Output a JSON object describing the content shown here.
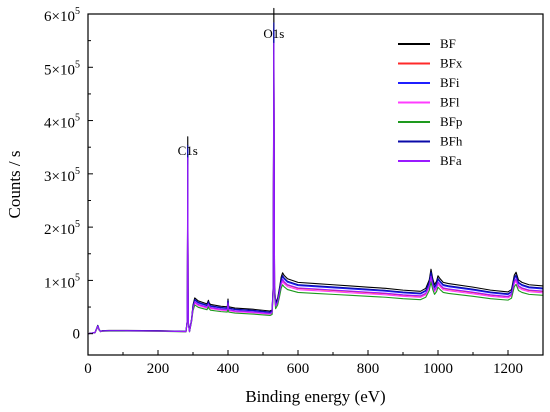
{
  "chart_data": {
    "type": "line",
    "title": "",
    "xlabel": "Binding energy (eV)",
    "ylabel": "Counts / s",
    "xlim": [
      0,
      1300
    ],
    "ylim": [
      -40000,
      600000
    ],
    "xticks": [
      {
        "value": 0,
        "label": "0"
      },
      {
        "value": 200,
        "label": "200"
      },
      {
        "value": 400,
        "label": "400"
      },
      {
        "value": 600,
        "label": "600"
      },
      {
        "value": 800,
        "label": "800"
      },
      {
        "value": 1000,
        "label": "1000"
      },
      {
        "value": 1200,
        "label": "1200"
      }
    ],
    "yticks": [
      {
        "value": 0,
        "base": "0",
        "exp": ""
      },
      {
        "value": 100000,
        "base": "1×10",
        "exp": "5"
      },
      {
        "value": 200000,
        "base": "2×10",
        "exp": "5"
      },
      {
        "value": 300000,
        "base": "3×10",
        "exp": "5"
      },
      {
        "value": 400000,
        "base": "4×10",
        "exp": "5"
      },
      {
        "value": 500000,
        "base": "5×10",
        "exp": "5"
      },
      {
        "value": 600000,
        "base": "6×10",
        "exp": "5"
      }
    ],
    "legend_position": "top-right",
    "grid": false,
    "annotations": [
      {
        "text": "C1s",
        "x": 285,
        "y": 335000
      },
      {
        "text": "O1s",
        "x": 531,
        "y": 555000
      }
    ],
    "base_profile": {
      "x": [
        0,
        20,
        24,
        28,
        32,
        36,
        40,
        60,
        100,
        200,
        280,
        283,
        284,
        285,
        286,
        287,
        290,
        296,
        300,
        305,
        315,
        340,
        344,
        346,
        350,
        380,
        398,
        400,
        402,
        420,
        470,
        520,
        526,
        529,
        530,
        531,
        532,
        533,
        536,
        542,
        548,
        552,
        556,
        560,
        570,
        600,
        650,
        700,
        750,
        800,
        850,
        900,
        950,
        965,
        975,
        980,
        985,
        990,
        996,
        1000,
        1006,
        1015,
        1030,
        1100,
        1150,
        1200,
        1210,
        1218,
        1223,
        1230,
        1240,
        1260,
        1300
      ],
      "y": [
        0,
        2000,
        8000,
        14000,
        7000,
        4000,
        5000,
        5500,
        5500,
        5000,
        4000,
        20000,
        80000,
        330000,
        80000,
        18000,
        4000,
        25000,
        48000,
        60000,
        55000,
        50000,
        56000,
        52000,
        49000,
        46000,
        45000,
        58000,
        45000,
        43000,
        41000,
        38000,
        40000,
        80000,
        300000,
        545000,
        300000,
        80000,
        52000,
        60000,
        80000,
        95000,
        102000,
        98000,
        92000,
        86000,
        84000,
        82000,
        80000,
        78000,
        76000,
        73000,
        71000,
        76000,
        90000,
        108000,
        92000,
        82000,
        88000,
        97000,
        92000,
        86000,
        84000,
        78000,
        73000,
        70000,
        74000,
        98000,
        103000,
        90000,
        86000,
        82000,
        80000
      ]
    },
    "series": [
      {
        "name": "BF",
        "color": "#000000",
        "scale": 1.12
      },
      {
        "name": "BFx",
        "color": "#ff2a2a",
        "scale": 0.99
      },
      {
        "name": "BFi",
        "color": "#1f1fff",
        "scale": 1.05
      },
      {
        "name": "BFl",
        "color": "#ff3cff",
        "scale": 0.96
      },
      {
        "name": "BFp",
        "color": "#1e9a1e",
        "scale": 0.9
      },
      {
        "name": "BFh",
        "color": "#0a0aa8",
        "scale": 1.07
      },
      {
        "name": "BFa",
        "color": "#9a1aff",
        "scale": 1.0
      }
    ]
  }
}
